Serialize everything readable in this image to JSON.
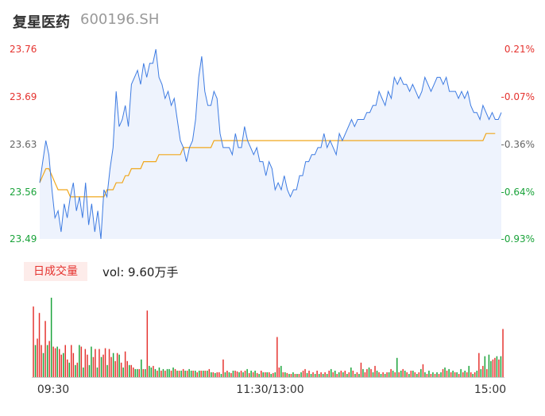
{
  "header": {
    "name": "复星医药",
    "code": "600196.SH"
  },
  "volume": {
    "tag_label": "日成交量",
    "prefix": "vol: ",
    "value": "9.60万手"
  },
  "colors": {
    "up": "#e5322e",
    "down": "#1aa33a",
    "price_line": "#3d7be2",
    "avg_line": "#f0a71c",
    "area_fill": "#eef3fd"
  },
  "chart_data": [
    {
      "type": "line",
      "title": "",
      "ylim": [
        23.49,
        23.76
      ],
      "left_ticks": [
        {
          "label": "23.76",
          "color": "up"
        },
        {
          "label": "23.69",
          "color": "up"
        },
        {
          "label": "23.63",
          "color": "neutral"
        },
        {
          "label": "23.56",
          "color": "down"
        },
        {
          "label": "23.49",
          "color": "down"
        }
      ],
      "right_ticks": [
        {
          "label": "0.21%",
          "color": "up"
        },
        {
          "label": "-0.07%",
          "color": "up"
        },
        {
          "label": "-0.36%",
          "color": "neutral"
        },
        {
          "label": "-0.64%",
          "color": "down"
        },
        {
          "label": "-0.93%",
          "color": "down"
        }
      ],
      "x_ticks": [
        "09:30",
        "11:30/13:00",
        "15:00"
      ],
      "series": [
        {
          "values": [
            23.57,
            23.6,
            23.63,
            23.61,
            23.56,
            23.52,
            23.53,
            23.5,
            23.54,
            23.52,
            23.55,
            23.57,
            23.53,
            23.55,
            23.52,
            23.57,
            23.51,
            23.54,
            23.5,
            23.53,
            23.49,
            23.56,
            23.55,
            23.59,
            23.62,
            23.7,
            23.65,
            23.66,
            23.68,
            23.65,
            23.71,
            23.72,
            23.73,
            23.71,
            23.74,
            23.72,
            23.74,
            23.74,
            23.76,
            23.72,
            23.71,
            23.69,
            23.7,
            23.68,
            23.69,
            23.66,
            23.63,
            23.62,
            23.6,
            23.62,
            23.63,
            23.66,
            23.72,
            23.75,
            23.7,
            23.68,
            23.68,
            23.7,
            23.69,
            23.64,
            23.62,
            23.62,
            23.62,
            23.61,
            23.64,
            23.62,
            23.62,
            23.65,
            23.63,
            23.62,
            23.61,
            23.62,
            23.6,
            23.6,
            23.58,
            23.6,
            23.59,
            23.56,
            23.57,
            23.56,
            23.58,
            23.56,
            23.55,
            23.56,
            23.56,
            23.58,
            23.58,
            23.6,
            23.6,
            23.61,
            23.61,
            23.62,
            23.62,
            23.64,
            23.62,
            23.63,
            23.62,
            23.61,
            23.64,
            23.63,
            23.64,
            23.65,
            23.66,
            23.65,
            23.66,
            23.66,
            23.66,
            23.67,
            23.67,
            23.68,
            23.68,
            23.7,
            23.69,
            23.68,
            23.7,
            23.69,
            23.72,
            23.71,
            23.72,
            23.71,
            23.71,
            23.7,
            23.71,
            23.7,
            23.69,
            23.7,
            23.72,
            23.71,
            23.7,
            23.71,
            23.72,
            23.72,
            23.71,
            23.72,
            23.7,
            23.7,
            23.7,
            23.69,
            23.7,
            23.69,
            23.7,
            23.68,
            23.67,
            23.67,
            23.66,
            23.68,
            23.67,
            23.66,
            23.67,
            23.66,
            23.66,
            23.67
          ]
        },
        {
          "values": [
            23.57,
            23.58,
            23.59,
            23.59,
            23.58,
            23.57,
            23.56,
            23.56,
            23.56,
            23.56,
            23.55,
            23.55,
            23.55,
            23.55,
            23.55,
            23.55,
            23.55,
            23.55,
            23.55,
            23.55,
            23.55,
            23.55,
            23.56,
            23.56,
            23.56,
            23.57,
            23.57,
            23.57,
            23.58,
            23.58,
            23.59,
            23.59,
            23.59,
            23.59,
            23.6,
            23.6,
            23.6,
            23.6,
            23.6,
            23.61,
            23.61,
            23.61,
            23.61,
            23.61,
            23.61,
            23.61,
            23.61,
            23.62,
            23.62,
            23.62,
            23.62,
            23.62,
            23.62,
            23.62,
            23.62,
            23.62,
            23.62,
            23.63,
            23.63,
            23.63,
            23.63,
            23.63,
            23.63,
            23.63,
            23.63,
            23.63,
            23.63,
            23.63,
            23.63,
            23.63,
            23.63,
            23.63,
            23.63,
            23.63,
            23.63,
            23.63,
            23.63,
            23.63,
            23.63,
            23.63,
            23.63,
            23.63,
            23.63,
            23.63,
            23.63,
            23.63,
            23.63,
            23.63,
            23.63,
            23.63,
            23.63,
            23.63,
            23.63,
            23.63,
            23.63,
            23.63,
            23.63,
            23.63,
            23.63,
            23.63,
            23.63,
            23.63,
            23.63,
            23.63,
            23.63,
            23.63,
            23.63,
            23.63,
            23.63,
            23.63,
            23.63,
            23.63,
            23.63,
            23.63,
            23.63,
            23.63,
            23.63,
            23.63,
            23.63,
            23.63,
            23.63,
            23.63,
            23.63,
            23.63,
            23.63,
            23.63,
            23.63,
            23.63,
            23.63,
            23.63,
            23.63,
            23.63,
            23.63,
            23.63,
            23.63,
            23.63,
            23.63,
            23.63,
            23.63,
            23.63,
            23.63,
            23.63,
            23.63,
            23.63,
            23.63,
            23.63,
            23.64,
            23.64,
            23.64,
            23.64
          ]
        }
      ]
    },
    {
      "type": "bar",
      "title": "",
      "values": [
        88,
        40,
        48,
        80,
        40,
        30,
        70,
        40,
        45,
        99,
        38,
        36,
        38,
        35,
        28,
        30,
        40,
        22,
        18,
        40,
        30,
        15,
        18,
        40,
        38,
        12,
        35,
        28,
        15,
        38,
        25,
        35,
        12,
        35,
        25,
        28,
        36,
        15,
        35,
        25,
        30,
        20,
        30,
        28,
        18,
        12,
        32,
        20,
        15,
        15,
        12,
        10,
        10,
        10,
        22,
        10,
        10,
        83,
        14,
        12,
        14,
        10,
        8,
        12,
        8,
        10,
        8,
        10,
        10,
        8,
        12,
        10,
        8,
        8,
        8,
        10,
        8,
        8,
        10,
        8,
        8,
        8,
        6,
        8,
        8,
        8,
        8,
        8,
        10,
        6,
        6,
        5,
        6,
        6,
        4,
        22,
        6,
        8,
        6,
        5,
        8,
        8,
        7,
        6,
        8,
        6,
        8,
        10,
        5,
        8,
        6,
        8,
        5,
        4,
        8,
        6,
        6,
        6,
        6,
        4,
        5,
        6,
        50,
        12,
        14,
        6,
        6,
        5,
        4,
        4,
        6,
        4,
        4,
        4,
        6,
        8,
        10,
        5,
        8,
        4,
        6,
        4,
        8,
        4,
        6,
        4,
        6,
        4,
        8,
        10,
        6,
        8,
        4,
        6,
        8,
        6,
        8,
        4,
        6,
        12,
        8,
        4,
        6,
        4,
        18,
        10,
        6,
        10,
        12,
        10,
        6,
        14,
        8,
        6,
        4,
        6,
        4,
        6,
        6,
        10,
        8,
        6,
        24,
        6,
        8,
        10,
        8,
        6,
        4,
        8,
        8,
        6,
        4,
        6,
        10,
        16,
        6,
        4,
        8,
        4,
        6,
        4,
        6,
        4,
        6,
        10,
        12,
        8,
        10,
        6,
        8,
        6,
        6,
        4,
        10,
        6,
        8,
        6,
        14,
        6,
        4,
        6,
        8,
        30,
        10,
        14,
        26,
        10,
        28,
        20,
        22,
        24,
        26,
        22,
        26,
        60
      ],
      "colors": [
        "up",
        "down",
        "up",
        "up",
        "up",
        "down",
        "up",
        "down",
        "up",
        "down",
        "up",
        "up",
        "down",
        "up",
        "up",
        "down",
        "up",
        "up",
        "down",
        "up",
        "up",
        "down",
        "up",
        "down",
        "up",
        "down",
        "up",
        "up",
        "down",
        "down",
        "up",
        "up",
        "down",
        "up",
        "down",
        "up",
        "up",
        "down",
        "up",
        "up",
        "down",
        "up",
        "up",
        "down",
        "up",
        "down",
        "up",
        "up",
        "down",
        "up",
        "up",
        "down",
        "down",
        "up",
        "down",
        "up",
        "down",
        "up",
        "down",
        "down",
        "up",
        "down",
        "up",
        "down",
        "up",
        "down",
        "up",
        "down",
        "down",
        "up",
        "down",
        "up",
        "down",
        "up",
        "down",
        "up",
        "down",
        "up",
        "down",
        "down",
        "up",
        "down",
        "up",
        "down",
        "up",
        "down",
        "up",
        "down",
        "up",
        "down",
        "up",
        "down",
        "up",
        "up",
        "down",
        "up",
        "down",
        "up",
        "down",
        "up",
        "down",
        "up",
        "up",
        "down",
        "up",
        "down",
        "up",
        "down",
        "up",
        "down",
        "up",
        "down",
        "up",
        "down",
        "up",
        "down",
        "up",
        "down",
        "up",
        "down",
        "up",
        "down",
        "up",
        "up",
        "down",
        "up",
        "down",
        "up",
        "down",
        "up",
        "down",
        "up",
        "down",
        "up",
        "down",
        "up",
        "up",
        "down",
        "up",
        "down",
        "up",
        "down",
        "up",
        "down",
        "up",
        "down",
        "up",
        "down",
        "up",
        "down",
        "up",
        "down",
        "up",
        "down",
        "up",
        "down",
        "up",
        "down",
        "up",
        "down",
        "up",
        "down",
        "up",
        "down",
        "up",
        "down",
        "up",
        "up",
        "down",
        "up",
        "down",
        "up",
        "down",
        "up",
        "down",
        "up",
        "down",
        "up",
        "down",
        "up",
        "down",
        "up",
        "down",
        "up",
        "down",
        "up",
        "down",
        "up",
        "down",
        "up",
        "down",
        "up",
        "down",
        "up",
        "down",
        "up",
        "down",
        "up",
        "down",
        "up",
        "down",
        "up",
        "down",
        "up",
        "down",
        "up",
        "down",
        "up",
        "down",
        "up",
        "down",
        "up",
        "down",
        "up",
        "down",
        "up",
        "down",
        "up",
        "down",
        "up",
        "down",
        "up",
        "down",
        "up",
        "down",
        "up",
        "down",
        "up",
        "down",
        "down",
        "up",
        "up",
        "down",
        "up",
        "down",
        "up",
        "down",
        "up"
      ]
    }
  ]
}
